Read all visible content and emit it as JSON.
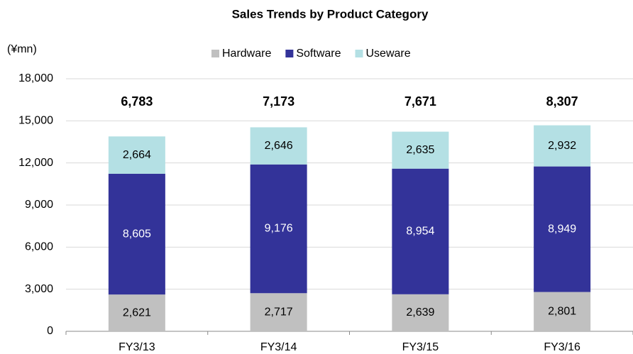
{
  "chart_data": {
    "type": "stacked_bar",
    "title": "Sales Trends by Product Category",
    "y_label": "(¥mn)",
    "categories": [
      "FY3/13",
      "FY3/14",
      "FY3/15",
      "FY3/16"
    ],
    "series": [
      {
        "name": "Hardware",
        "color": "#c0c0c0",
        "values": [
          2621,
          2717,
          2639,
          2801
        ],
        "value_labels": [
          "2,621",
          "2,717",
          "2,639",
          "2,801"
        ]
      },
      {
        "name": "Software",
        "color": "#333399",
        "values": [
          8605,
          9176,
          8954,
          8949
        ],
        "value_labels": [
          "8,605",
          "9,176",
          "8,954",
          "8,949"
        ]
      },
      {
        "name": "Useware",
        "color": "#b4e0e4",
        "values": [
          2664,
          2646,
          2635,
          2932
        ],
        "value_labels": [
          "2,664",
          "2,646",
          "2,635",
          "2,932"
        ]
      }
    ],
    "annotations": [
      "6,783",
      "7,173",
      "7,671",
      "8,307"
    ],
    "ylim": [
      0,
      18000
    ],
    "yticks": [
      0,
      {
        "value": 3000,
        "label": "3,000"
      },
      {
        "value": 6000,
        "label": "6,000"
      },
      {
        "value": 9000,
        "label": "9,000"
      },
      {
        "value": 12000,
        "label": "12,000"
      },
      {
        "value": 15000,
        "label": "15,000"
      },
      {
        "value": 18000,
        "label": "18,000"
      }
    ],
    "grid": true,
    "legend": "top"
  }
}
